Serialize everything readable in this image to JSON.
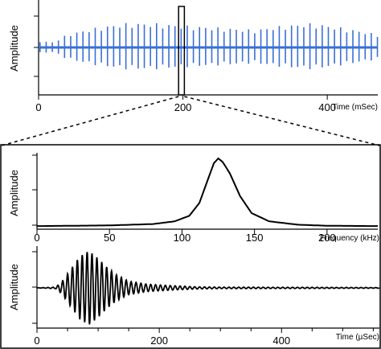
{
  "chart_data": [
    {
      "type": "line",
      "name": "waveform-overview",
      "ylabel": "Amplitude",
      "xlabel": "Time (mSec)",
      "xlim": [
        0,
        470
      ],
      "x_ticks": [
        0,
        200,
        400
      ],
      "x_tick_labels": [
        "0",
        "200",
        "400"
      ],
      "y_tick_count": 3,
      "series": [
        {
          "color": "#3a6fd8",
          "description_points": [
            {
              "x": 0,
              "amplitude": 0.15
            },
            {
              "x": 20,
              "amplitude": 0.12
            },
            {
              "x": 40,
              "amplitude": 0.3
            },
            {
              "x": 80,
              "amplitude": 0.45
            },
            {
              "x": 120,
              "amplitude": 0.55
            },
            {
              "x": 160,
              "amplitude": 0.55
            },
            {
              "x": 200,
              "amplitude": 0.5
            },
            {
              "x": 250,
              "amplitude": 0.45
            },
            {
              "x": 300,
              "amplitude": 0.4
            },
            {
              "x": 340,
              "amplitude": 0.5
            },
            {
              "x": 380,
              "amplitude": 0.55
            },
            {
              "x": 420,
              "amplitude": 0.45
            },
            {
              "x": 470,
              "amplitude": 0.3
            }
          ],
          "pulse_interval_ms": 8.5
        }
      ],
      "highlight_window": {
        "x_start": 194,
        "x_end": 202
      }
    },
    {
      "type": "line",
      "name": "spectrum",
      "ylabel": "Amplitude",
      "xlabel": "Frequency (kHz)",
      "xlim": [
        0,
        235
      ],
      "x_ticks": [
        0,
        50,
        100,
        150,
        200
      ],
      "x_tick_labels": [
        "0",
        "50",
        "100",
        "150",
        "200"
      ],
      "y_tick_count": 3,
      "series": [
        {
          "color": "#000000",
          "peak_x": 125,
          "peak_amplitude": 1.0,
          "points": [
            [
              0,
              0.01
            ],
            [
              50,
              0.02
            ],
            [
              80,
              0.04
            ],
            [
              95,
              0.08
            ],
            [
              105,
              0.16
            ],
            [
              112,
              0.35
            ],
            [
              118,
              0.7
            ],
            [
              122,
              0.93
            ],
            [
              125,
              1.0
            ],
            [
              128,
              0.95
            ],
            [
              133,
              0.78
            ],
            [
              140,
              0.45
            ],
            [
              148,
              0.2
            ],
            [
              160,
              0.08
            ],
            [
              180,
              0.03
            ],
            [
              200,
              0.015
            ],
            [
              235,
              0.01
            ]
          ]
        }
      ]
    },
    {
      "type": "line",
      "name": "single-pulse",
      "ylabel": "Amplitude",
      "xlabel": "Time (µSec)",
      "xlim": [
        0,
        560
      ],
      "x_ticks": [
        0,
        200,
        400
      ],
      "x_tick_labels": [
        "0",
        "200",
        "400"
      ],
      "x_minor_ticks": [
        50,
        100,
        150,
        250,
        300,
        350,
        450,
        500,
        550
      ],
      "y_tick_count": 3,
      "series": [
        {
          "color": "#000000",
          "carrier_khz": 125,
          "envelope_points": [
            [
              0,
              0.0
            ],
            [
              30,
              0.02
            ],
            [
              40,
              0.15
            ],
            [
              55,
              0.5
            ],
            [
              70,
              0.85
            ],
            [
              85,
              1.0
            ],
            [
              100,
              0.8
            ],
            [
              115,
              0.55
            ],
            [
              130,
              0.35
            ],
            [
              150,
              0.18
            ],
            [
              180,
              0.1
            ],
            [
              220,
              0.06
            ],
            [
              260,
              0.03
            ],
            [
              300,
              0.02
            ],
            [
              560,
              0.01
            ]
          ]
        }
      ]
    }
  ]
}
